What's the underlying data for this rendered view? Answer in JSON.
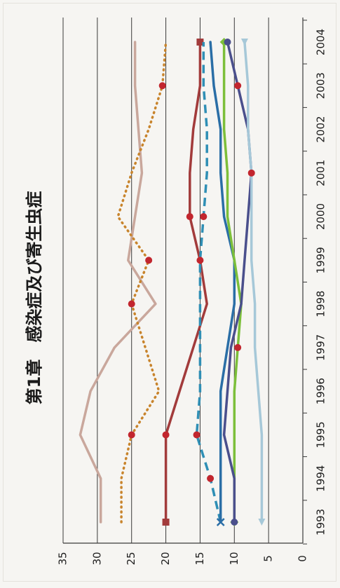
{
  "chart_data": {
    "type": "line",
    "title": "第1章　感染症及び寄生虫症",
    "categories": [
      "1993",
      "1994",
      "1995",
      "1996",
      "1997",
      "1998",
      "1999",
      "2000",
      "2001",
      "2002",
      "2003",
      "2004"
    ],
    "x_tick_labels": [
      "1993",
      "1994",
      "1995",
      "1996",
      "1997",
      "1998",
      "1999",
      "2000",
      "2001",
      "2002",
      "2003",
      "2004"
    ],
    "y_tick_labels": [
      "0",
      "5",
      "10",
      "15",
      "20",
      "25",
      "30",
      "35"
    ],
    "ylim": [
      0,
      35
    ],
    "grid": true,
    "orientation": "rotated-90-clockwise",
    "series": [
      {
        "color": "#c9a79c",
        "style": "solid",
        "marker": "none",
        "values": [
          29.5,
          29.5,
          32.5,
          31,
          27.5,
          21.5,
          25.5,
          24.5,
          23.5,
          24,
          24.5,
          24.5
        ]
      },
      {
        "color": "#c8842c",
        "style": "dotted",
        "marker": "circle-on-2",
        "values": [
          26.5,
          26.5,
          25,
          21,
          23,
          25,
          22.5,
          27,
          25,
          22.5,
          20.5,
          20
        ]
      },
      {
        "color": "#a23b3b",
        "style": "solid",
        "marker": "square-ends",
        "values": [
          20,
          20,
          20,
          18,
          16,
          14,
          15,
          16.5,
          16.5,
          16,
          15,
          15
        ]
      },
      {
        "color": "#2f8fb5",
        "style": "dashed",
        "marker": "circle-on-1",
        "values": [
          12,
          13.5,
          15.5,
          15,
          15,
          15,
          15,
          14.5,
          14,
          14,
          14.5,
          14.5
        ]
      },
      {
        "color": "#2a6ea6",
        "style": "solid",
        "marker": "x-start",
        "values": [
          12,
          12,
          12,
          12,
          11,
          10,
          10,
          11.5,
          12,
          12,
          13,
          13.5
        ]
      },
      {
        "color": "#7cbf3a",
        "style": "solid",
        "marker": "diamond-ends",
        "values": [
          10,
          10,
          10,
          10,
          9.5,
          9,
          10,
          11,
          11,
          11.5,
          11.5,
          11.5
        ]
      },
      {
        "color": "#4a4f8c",
        "style": "solid",
        "marker": "circle-ends",
        "values": [
          10,
          10,
          11.5,
          11,
          10.5,
          9,
          8.5,
          8,
          7.5,
          8,
          9.5,
          11
        ]
      },
      {
        "color": "#a6c8d8",
        "style": "solid",
        "marker": "triangle-ends",
        "values": [
          6,
          6,
          6,
          6.5,
          7,
          7,
          7.5,
          7.5,
          7.5,
          8,
          8,
          8.5
        ]
      }
    ]
  }
}
